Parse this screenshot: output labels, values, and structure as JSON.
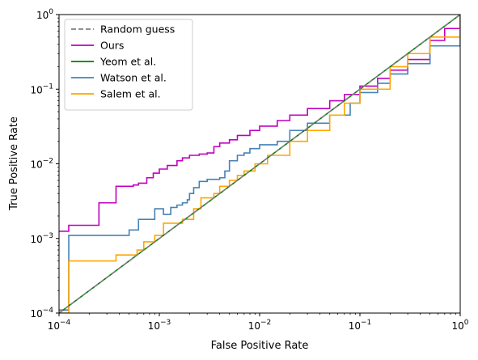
{
  "chart_data": {
    "type": "line",
    "title": "",
    "xlabel": "False Positive Rate",
    "ylabel": "True Positive Rate",
    "xscale": "log",
    "yscale": "log",
    "xlim": [
      0.0001,
      1
    ],
    "ylim": [
      0.0001,
      1
    ],
    "xticks": [
      {
        "value": 0.0001,
        "base": "10",
        "exp": "−4"
      },
      {
        "value": 0.001,
        "base": "10",
        "exp": "−3"
      },
      {
        "value": 0.01,
        "base": "10",
        "exp": "−2"
      },
      {
        "value": 0.1,
        "base": "10",
        "exp": "−1"
      },
      {
        "value": 1,
        "base": "10",
        "exp": "0"
      }
    ],
    "yticks": [
      {
        "value": 0.0001,
        "base": "10",
        "exp": "−4"
      },
      {
        "value": 0.001,
        "base": "10",
        "exp": "−3"
      },
      {
        "value": 0.01,
        "base": "10",
        "exp": "−2"
      },
      {
        "value": 0.1,
        "base": "10",
        "exp": "−1"
      },
      {
        "value": 1,
        "base": "10",
        "exp": "0"
      }
    ],
    "grid": false,
    "legend_position": "top-left",
    "series": [
      {
        "name": "Random guess",
        "color": "#808080",
        "dashed": true,
        "step": false,
        "x": [
          0.0001,
          1
        ],
        "y": [
          0.0001,
          1
        ]
      },
      {
        "name": "Ours",
        "color": "#bf00bf",
        "dashed": false,
        "step": true,
        "x": [
          0.0001,
          0.000125,
          0.000125,
          0.00025,
          0.00025,
          0.00037,
          0.00037,
          0.0005,
          0.00055,
          0.00062,
          0.00075,
          0.00075,
          0.00087,
          0.00087,
          0.001,
          0.0012,
          0.0012,
          0.0015,
          0.0017,
          0.002,
          0.0025,
          0.003,
          0.0035,
          0.004,
          0.005,
          0.006,
          0.008,
          0.01,
          0.015,
          0.02,
          0.03,
          0.05,
          0.07,
          0.1,
          0.15,
          0.2,
          0.3,
          0.5,
          0.7,
          1
        ],
        "y": [
          0.00125,
          0.00125,
          0.0015,
          0.0015,
          0.003,
          0.003,
          0.005,
          0.005,
          0.0052,
          0.0055,
          0.0055,
          0.0065,
          0.0065,
          0.0075,
          0.0085,
          0.009,
          0.0095,
          0.011,
          0.012,
          0.013,
          0.0135,
          0.014,
          0.017,
          0.019,
          0.021,
          0.024,
          0.028,
          0.032,
          0.038,
          0.045,
          0.055,
          0.07,
          0.085,
          0.11,
          0.14,
          0.18,
          0.25,
          0.45,
          0.65,
          1
        ]
      },
      {
        "name": "Yeom et al.",
        "color": "#008000",
        "dashed": false,
        "step": false,
        "x": [
          0.0001,
          0.001,
          0.01,
          0.1,
          1
        ],
        "y": [
          0.0001,
          0.001,
          0.01,
          0.1,
          1
        ]
      },
      {
        "name": "Watson et al.",
        "color": "#4682b4",
        "dashed": false,
        "step": true,
        "x": [
          0.0001,
          0.000125,
          0.000125,
          0.0005,
          0.0005,
          0.00062,
          0.00062,
          0.0009,
          0.0009,
          0.0011,
          0.0011,
          0.0013,
          0.0013,
          0.0015,
          0.0017,
          0.0019,
          0.002,
          0.0022,
          0.0025,
          0.003,
          0.004,
          0.0045,
          0.005,
          0.006,
          0.007,
          0.008,
          0.01,
          0.015,
          0.02,
          0.03,
          0.05,
          0.08,
          0.1,
          0.15,
          0.2,
          0.3,
          0.5,
          1
        ],
        "y": [
          0.00011,
          0.00011,
          0.0011,
          0.0011,
          0.0013,
          0.0013,
          0.0018,
          0.0018,
          0.0025,
          0.0025,
          0.0021,
          0.0021,
          0.0026,
          0.0028,
          0.003,
          0.0033,
          0.004,
          0.0048,
          0.0058,
          0.0062,
          0.0065,
          0.008,
          0.011,
          0.013,
          0.014,
          0.016,
          0.018,
          0.02,
          0.028,
          0.035,
          0.045,
          0.065,
          0.09,
          0.12,
          0.16,
          0.22,
          0.38,
          1
        ]
      },
      {
        "name": "Salem et al.",
        "color": "#ffa500",
        "dashed": false,
        "step": true,
        "x": [
          0.0001,
          0.000125,
          0.000125,
          0.00037,
          0.00037,
          0.0006,
          0.0006,
          0.0007,
          0.0007,
          0.0009,
          0.0011,
          0.0011,
          0.0014,
          0.0017,
          0.0017,
          0.0022,
          0.0026,
          0.0035,
          0.004,
          0.005,
          0.006,
          0.007,
          0.009,
          0.012,
          0.02,
          0.03,
          0.05,
          0.07,
          0.1,
          0.2,
          0.3,
          0.5,
          1
        ],
        "y": [
          0.0001,
          0.0001,
          0.0005,
          0.0005,
          0.0006,
          0.0006,
          0.0007,
          0.0007,
          0.0009,
          0.0011,
          0.0011,
          0.0016,
          0.0016,
          0.0016,
          0.0018,
          0.0025,
          0.0035,
          0.004,
          0.005,
          0.006,
          0.007,
          0.008,
          0.01,
          0.013,
          0.02,
          0.028,
          0.045,
          0.065,
          0.1,
          0.2,
          0.3,
          0.5,
          1
        ]
      }
    ]
  }
}
